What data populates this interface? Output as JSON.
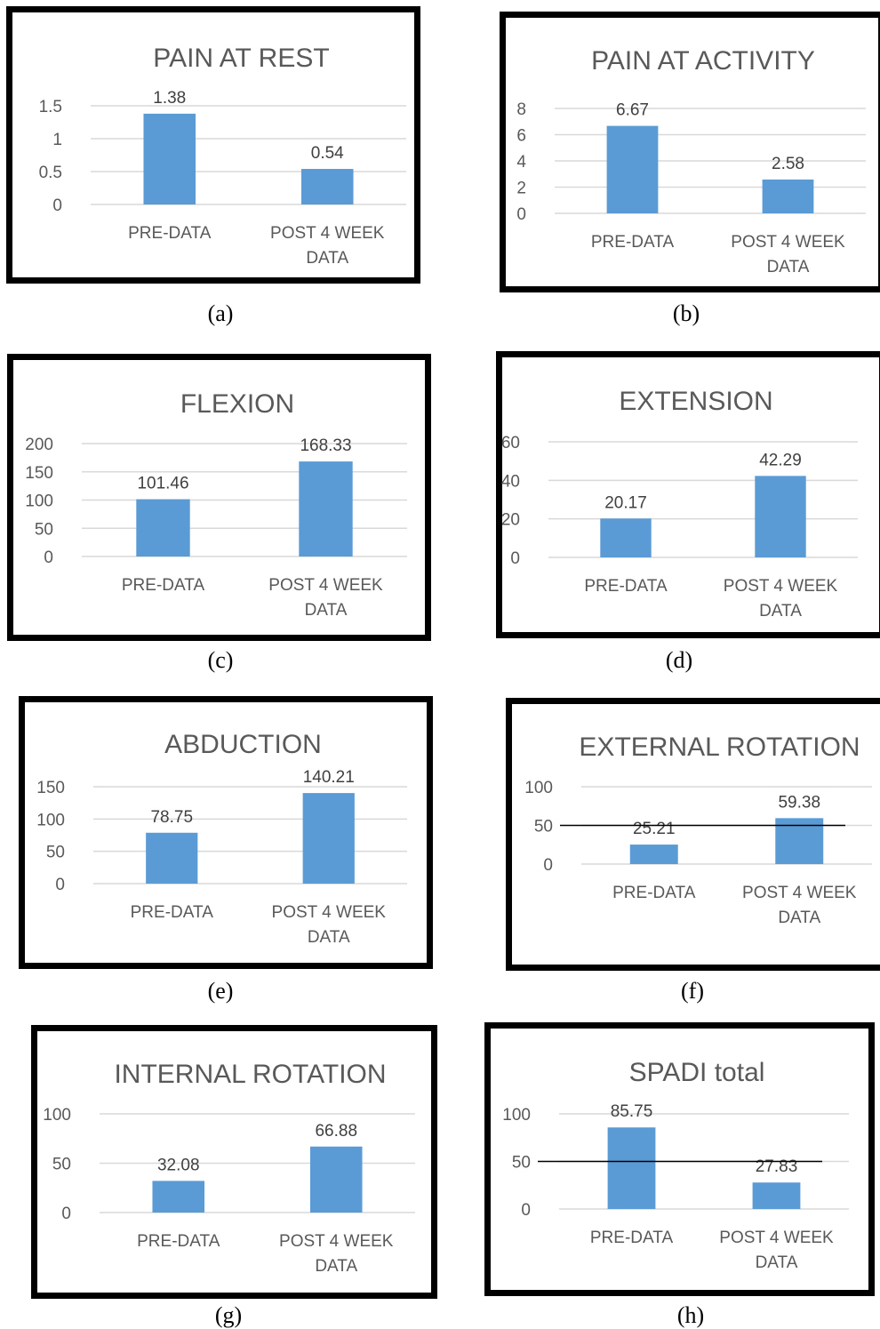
{
  "chart_data": [
    {
      "type": "bar",
      "title": "PAIN AT REST",
      "caption": "(a)",
      "categories": [
        "PRE-DATA",
        "POST 4 WEEK DATA"
      ],
      "values": [
        1.38,
        0.54
      ],
      "data_labels": [
        "1.38",
        "0.54"
      ],
      "ylim": [
        0,
        1.5
      ],
      "yticks": [
        "0",
        "0.5",
        "1",
        "1.5"
      ],
      "bar_color": "#5b9bd5",
      "grid": true,
      "legend": "none"
    },
    {
      "type": "bar",
      "title": "PAIN AT ACTIVITY",
      "caption": "(b)",
      "categories": [
        "PRE-DATA",
        "POST 4 WEEK DATA"
      ],
      "values": [
        6.67,
        2.58
      ],
      "data_labels": [
        "6.67",
        "2.58"
      ],
      "ylim": [
        0,
        8
      ],
      "yticks": [
        "0",
        "2",
        "4",
        "6",
        "8"
      ],
      "bar_color": "#5b9bd5",
      "grid": true,
      "legend": "none"
    },
    {
      "type": "bar",
      "title": "FLEXION",
      "caption": "(c)",
      "categories": [
        "PRE-DATA",
        "POST 4 WEEK DATA"
      ],
      "values": [
        101.46,
        168.33
      ],
      "data_labels": [
        "101.46",
        "168.33"
      ],
      "ylim": [
        0,
        200
      ],
      "yticks": [
        "0",
        "50",
        "100",
        "150",
        "200"
      ],
      "bar_color": "#5b9bd5",
      "grid": true,
      "legend": "none"
    },
    {
      "type": "bar",
      "title": "EXTENSION",
      "caption": "(d)",
      "categories": [
        "PRE-DATA",
        "POST 4 WEEK DATA"
      ],
      "values": [
        20.17,
        42.29
      ],
      "data_labels": [
        "20.17",
        "42.29"
      ],
      "ylim": [
        0,
        60
      ],
      "yticks": [
        "0",
        "20",
        "40",
        "60"
      ],
      "bar_color": "#5b9bd5",
      "grid": true,
      "legend": "none"
    },
    {
      "type": "bar",
      "title": "ABDUCTION",
      "caption": "(e)",
      "categories": [
        "PRE-DATA",
        "POST 4 WEEK DATA"
      ],
      "values": [
        78.75,
        140.21
      ],
      "data_labels": [
        "78.75",
        "140.21"
      ],
      "ylim": [
        0,
        150
      ],
      "yticks": [
        "0",
        "50",
        "100",
        "150"
      ],
      "bar_color": "#5b9bd5",
      "grid": true,
      "legend": "none"
    },
    {
      "type": "bar",
      "title": "EXTERNAL ROTATION",
      "caption": "(f)",
      "categories": [
        "PRE-DATA",
        "POST 4 WEEK DATA"
      ],
      "values": [
        25.21,
        59.38
      ],
      "data_labels": [
        "25.21",
        "59.38"
      ],
      "ylim": [
        0,
        100
      ],
      "yticks": [
        "0",
        "50",
        "100"
      ],
      "bar_color": "#5b9bd5",
      "grid": true,
      "legend": "none",
      "reference_line": 50
    },
    {
      "type": "bar",
      "title": "INTERNAL ROTATION",
      "caption": "(g)",
      "categories": [
        "PRE-DATA",
        "POST 4 WEEK DATA"
      ],
      "values": [
        32.08,
        66.88
      ],
      "data_labels": [
        "32.08",
        "66.88"
      ],
      "ylim": [
        0,
        100
      ],
      "yticks": [
        "0",
        "50",
        "100"
      ],
      "bar_color": "#5b9bd5",
      "grid": true,
      "legend": "none"
    },
    {
      "type": "bar",
      "title": "SPADI total",
      "caption": "(h)",
      "categories": [
        "PRE-DATA",
        "POST 4 WEEK DATA"
      ],
      "values": [
        85.75,
        27.83
      ],
      "data_labels": [
        "85.75",
        "27.83"
      ],
      "ylim": [
        0,
        100
      ],
      "yticks": [
        "0",
        "50",
        "100"
      ],
      "bar_color": "#5b9bd5",
      "grid": true,
      "legend": "none",
      "reference_line": 50
    }
  ]
}
